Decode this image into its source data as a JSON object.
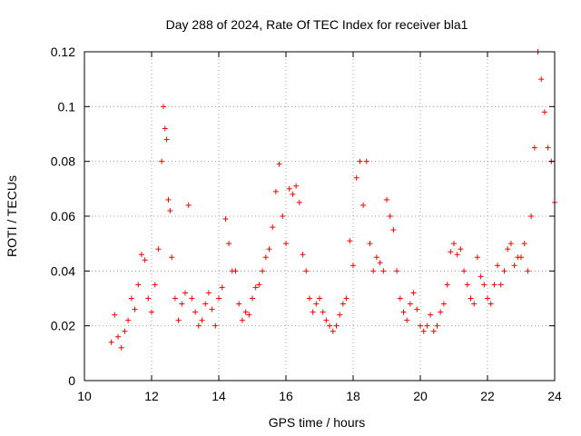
{
  "chart_data": {
    "type": "scatter",
    "title": "Day 288 of 2024, Rate Of TEC Index for receiver bla1",
    "xlabel": "GPS time / hours",
    "ylabel": "ROTI / TECUs",
    "xlim": [
      10,
      24
    ],
    "ylim": [
      0,
      0.12
    ],
    "xticks": [
      "10",
      "12",
      "14",
      "16",
      "18",
      "20",
      "22",
      "24"
    ],
    "yticks": [
      "0",
      "0.02",
      "0.04",
      "0.06",
      "0.08",
      "0.1",
      "0.12"
    ],
    "grid": true,
    "marker": "+",
    "color": "#ff0000",
    "series": [
      {
        "name": "ROTI",
        "x": [
          10.8,
          10.9,
          11.0,
          11.1,
          11.2,
          11.3,
          11.4,
          11.5,
          11.6,
          11.7,
          11.8,
          11.9,
          12.0,
          12.1,
          12.2,
          12.3,
          12.35,
          12.4,
          12.45,
          12.5,
          12.55,
          12.6,
          12.7,
          12.8,
          12.9,
          13.0,
          13.1,
          13.2,
          13.3,
          13.4,
          13.5,
          13.6,
          13.7,
          13.8,
          13.9,
          14.0,
          14.1,
          14.2,
          14.3,
          14.4,
          14.5,
          14.6,
          14.7,
          14.8,
          14.9,
          15.0,
          15.1,
          15.2,
          15.3,
          15.4,
          15.5,
          15.6,
          15.7,
          15.8,
          15.9,
          16.0,
          16.1,
          16.2,
          16.3,
          16.4,
          16.5,
          16.6,
          16.7,
          16.8,
          16.9,
          17.0,
          17.1,
          17.2,
          17.3,
          17.4,
          17.5,
          17.6,
          17.7,
          17.8,
          17.9,
          18.0,
          18.1,
          18.2,
          18.3,
          18.4,
          18.5,
          18.6,
          18.7,
          18.8,
          18.9,
          19.0,
          19.1,
          19.2,
          19.3,
          19.4,
          19.5,
          19.6,
          19.7,
          19.8,
          19.9,
          20.0,
          20.1,
          20.2,
          20.3,
          20.4,
          20.5,
          20.6,
          20.7,
          20.8,
          20.9,
          21.0,
          21.1,
          21.2,
          21.3,
          21.4,
          21.5,
          21.6,
          21.7,
          21.8,
          21.9,
          22.0,
          22.1,
          22.2,
          22.3,
          22.4,
          22.5,
          22.6,
          22.7,
          22.8,
          22.9,
          23.0,
          23.1,
          23.2,
          23.3,
          23.4,
          23.5,
          23.6,
          23.7,
          23.8,
          23.9,
          24.0
        ],
        "y": [
          0.014,
          0.024,
          0.016,
          0.012,
          0.018,
          0.022,
          0.03,
          0.026,
          0.035,
          0.046,
          0.044,
          0.03,
          0.025,
          0.035,
          0.048,
          0.08,
          0.1,
          0.092,
          0.088,
          0.066,
          0.062,
          0.045,
          0.03,
          0.022,
          0.028,
          0.032,
          0.064,
          0.03,
          0.025,
          0.02,
          0.022,
          0.028,
          0.032,
          0.026,
          0.02,
          0.03,
          0.034,
          0.059,
          0.05,
          0.04,
          0.04,
          0.028,
          0.022,
          0.025,
          0.024,
          0.03,
          0.034,
          0.035,
          0.04,
          0.045,
          0.048,
          0.056,
          0.069,
          0.079,
          0.06,
          0.05,
          0.07,
          0.068,
          0.071,
          0.065,
          0.046,
          0.04,
          0.03,
          0.025,
          0.028,
          0.03,
          0.025,
          0.022,
          0.02,
          0.018,
          0.02,
          0.024,
          0.028,
          0.03,
          0.051,
          0.042,
          0.074,
          0.08,
          0.064,
          0.08,
          0.05,
          0.04,
          0.045,
          0.043,
          0.04,
          0.066,
          0.06,
          0.055,
          0.04,
          0.03,
          0.025,
          0.022,
          0.028,
          0.032,
          0.026,
          0.02,
          0.018,
          0.02,
          0.024,
          0.018,
          0.02,
          0.025,
          0.028,
          0.035,
          0.047,
          0.05,
          0.046,
          0.048,
          0.04,
          0.035,
          0.03,
          0.028,
          0.045,
          0.038,
          0.035,
          0.03,
          0.028,
          0.035,
          0.042,
          0.035,
          0.04,
          0.048,
          0.05,
          0.042,
          0.045,
          0.045,
          0.05,
          0.04,
          0.06,
          0.085,
          0.12,
          0.11,
          0.098,
          0.085,
          0.08,
          0.065
        ]
      }
    ]
  }
}
